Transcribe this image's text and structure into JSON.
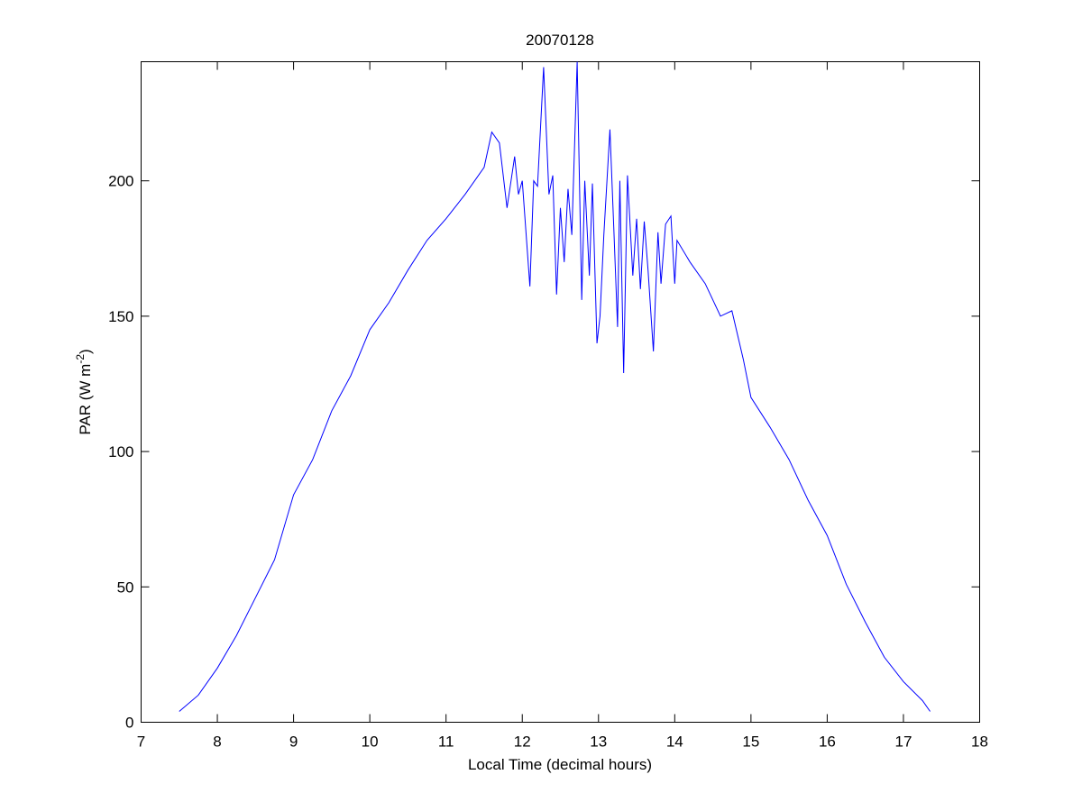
{
  "chart_data": {
    "type": "line",
    "title": "20070128",
    "xlabel": "Local Time (decimal hours)",
    "ylabel": {
      "text": "PAR (W m",
      "superscript": "-2",
      "suffix": ")"
    },
    "xlim": [
      7,
      18
    ],
    "xticks": [
      7,
      8,
      9,
      10,
      11,
      12,
      13,
      14,
      15,
      16,
      17,
      18
    ],
    "ylim": [
      0,
      244
    ],
    "yticks": [
      0,
      50,
      100,
      150,
      200
    ],
    "grid": false,
    "series": [
      {
        "color": "#0000ff",
        "x": [
          7.5,
          7.75,
          8.0,
          8.25,
          8.5,
          8.75,
          9.0,
          9.25,
          9.5,
          9.75,
          10.0,
          10.25,
          10.5,
          10.75,
          11.0,
          11.25,
          11.5,
          11.6,
          11.7,
          11.8,
          11.9,
          11.95,
          12.0,
          12.1,
          12.15,
          12.2,
          12.28,
          12.35,
          12.4,
          12.45,
          12.5,
          12.55,
          12.6,
          12.65,
          12.72,
          12.78,
          12.82,
          12.88,
          12.92,
          12.98,
          13.02,
          13.07,
          13.15,
          13.2,
          13.25,
          13.28,
          13.33,
          13.38,
          13.45,
          13.5,
          13.55,
          13.6,
          13.65,
          13.72,
          13.78,
          13.82,
          13.88,
          13.95,
          14.0,
          14.03,
          14.2,
          14.4,
          14.6,
          14.75,
          14.9,
          15.0,
          15.25,
          15.5,
          15.75,
          16.0,
          16.25,
          16.5,
          16.75,
          17.0,
          17.25,
          17.35
        ],
        "values": [
          4,
          10,
          20,
          32,
          46,
          60,
          84,
          97,
          115,
          128,
          145,
          155,
          167,
          178,
          186,
          195,
          205,
          218,
          214,
          190,
          209,
          195,
          200,
          161,
          200,
          198,
          242,
          195,
          202,
          158,
          190,
          170,
          197,
          180,
          244,
          156,
          200,
          165,
          199,
          140,
          150,
          180,
          219,
          183,
          146,
          200,
          129,
          202,
          165,
          186,
          160,
          185,
          167,
          137,
          181,
          162,
          184,
          187,
          162,
          178,
          170,
          162,
          150,
          152,
          134,
          120,
          109,
          97,
          82,
          69,
          51,
          37,
          24,
          15,
          8,
          4
        ]
      }
    ]
  }
}
